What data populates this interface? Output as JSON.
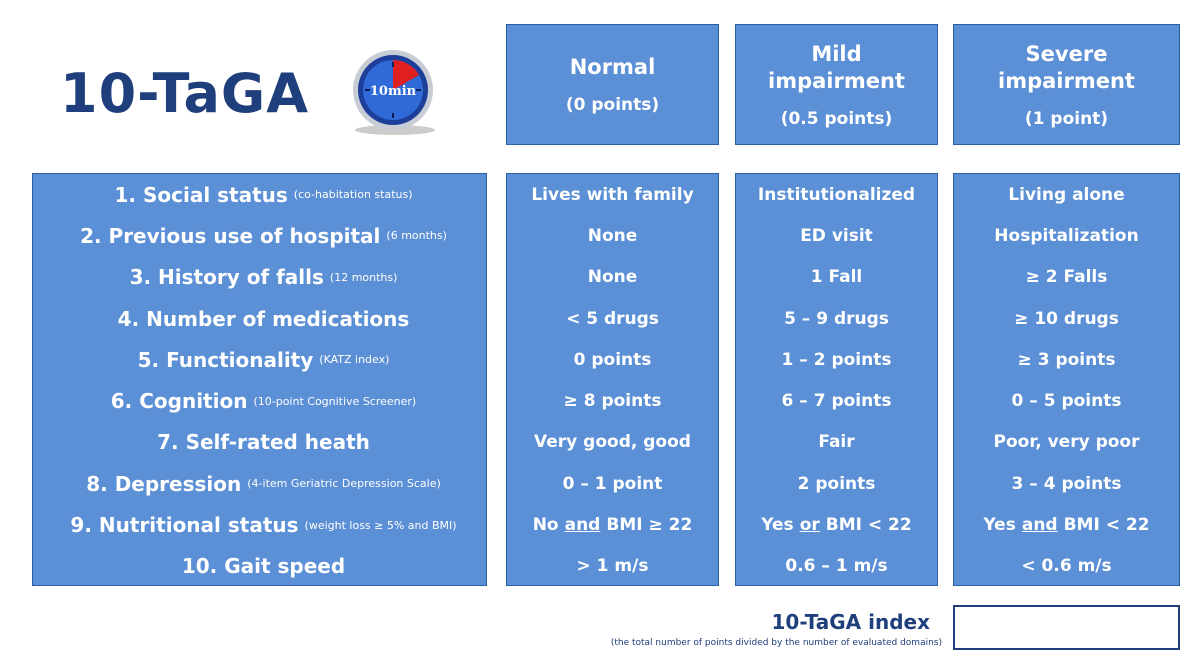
{
  "title": "10-TaGA",
  "timer_label": "10min",
  "columns": [
    {
      "label": "Normal",
      "points": "(0 points)"
    },
    {
      "label": "Mild impairment",
      "points": "(0.5 points)"
    },
    {
      "label": "Severe impairment",
      "points": "(1 point)"
    }
  ],
  "domains": [
    {
      "name": "1. Social status",
      "note": "(co-habitation status)",
      "values": [
        "Lives with family",
        "Institutionalized",
        "Living alone"
      ]
    },
    {
      "name": "2. Previous use of hospital",
      "note": "(6 months)",
      "values": [
        "None",
        "ED visit",
        "Hospitalization"
      ]
    },
    {
      "name": "3. History of falls",
      "note": "(12 months)",
      "values": [
        "None",
        "1 Fall",
        "≥ 2 Falls"
      ]
    },
    {
      "name": "4. Number of medications",
      "values": [
        "< 5 drugs",
        "5 – 9 drugs",
        "≥ 10 drugs"
      ]
    },
    {
      "name": "5. Functionality",
      "note": "(KATZ index)",
      "values": [
        "0 points",
        "1 – 2 points",
        "≥ 3 points"
      ]
    },
    {
      "name": "6. Cognition",
      "note": "(10-point Cognitive Screener)",
      "values": [
        "≥ 8 points",
        "6 – 7 points",
        "0 – 5 points"
      ]
    },
    {
      "name": "7. Self-rated heath",
      "values": [
        "Very good, good",
        "Fair",
        "Poor, very poor"
      ]
    },
    {
      "name": "8. Depression",
      "note": "(4-item Geriatric Depression Scale)",
      "values": [
        "0 – 1 point",
        "2 points",
        "3 – 4 points"
      ]
    },
    {
      "name": "9. Nutritional status",
      "note": "(weight loss ≥ 5% and BMI)",
      "values": [
        [
          "No",
          "and",
          "BMI ≥ 22"
        ],
        [
          "Yes",
          "or",
          "BMI < 22"
        ],
        [
          "Yes",
          "and",
          "BMI < 22"
        ]
      ]
    },
    {
      "name": "10. Gait speed",
      "values": [
        "> 1 m/s",
        "0.6 – 1 m/s",
        "< 0.6 m/s"
      ]
    }
  ],
  "index": {
    "title": "10-TaGA index",
    "note": "(the total number of points divided by the number of evaluated domains)"
  }
}
